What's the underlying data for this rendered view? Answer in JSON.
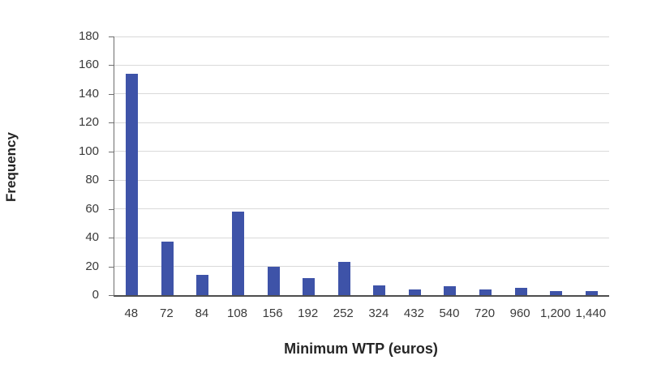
{
  "chart_data": {
    "type": "bar",
    "title": "",
    "xlabel": "Minimum WTP (euros)",
    "ylabel": "Frequency",
    "categories": [
      "48",
      "72",
      "84",
      "108",
      "156",
      "192",
      "252",
      "324",
      "432",
      "540",
      "720",
      "960",
      "1,200",
      "1,440"
    ],
    "values": [
      154,
      37,
      14,
      58,
      20,
      12,
      23,
      7,
      4,
      6,
      4,
      5,
      3,
      3
    ],
    "ylim": [
      0,
      180
    ],
    "ytick_step": 20,
    "yticks": [
      0,
      20,
      40,
      60,
      80,
      100,
      120,
      140,
      160,
      180
    ],
    "grid": "horizontal-only",
    "legend": "none",
    "colors": {
      "bar_fill": "#3e53a8",
      "gridline": "#d9d9d9",
      "x_axis_line": "#4d4d4d",
      "y_axis_line": "#6e6e6e",
      "tick_label_text": "#3a3a3a",
      "axis_title_text": "#262626",
      "background": "#ffffff"
    }
  }
}
